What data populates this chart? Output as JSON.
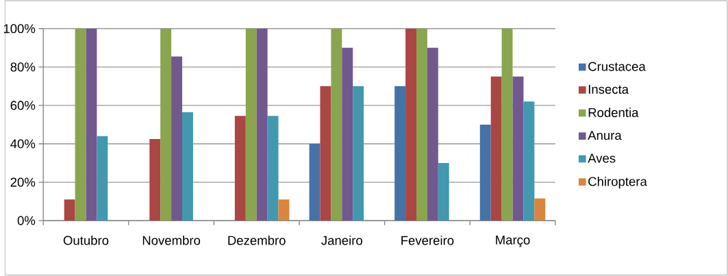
{
  "chart_data": {
    "type": "bar",
    "categories": [
      "Outubro",
      "Novembro",
      "Dezembro",
      "Janeiro",
      "Fevereiro",
      "Março"
    ],
    "series": [
      {
        "name": "Crustacea",
        "color": "#4572a7",
        "values": [
          0,
          0,
          0,
          40,
          70,
          50
        ]
      },
      {
        "name": "Insecta",
        "color": "#aa4643",
        "values": [
          11,
          42.5,
          54.5,
          70,
          100,
          75
        ]
      },
      {
        "name": "Rodentia",
        "color": "#89a54e",
        "values": [
          100,
          100,
          100,
          100,
          100,
          100
        ]
      },
      {
        "name": "Anura",
        "color": "#71588f",
        "values": [
          100,
          85.5,
          100,
          90,
          90,
          75
        ]
      },
      {
        "name": "Aves",
        "color": "#4198af",
        "values": [
          44,
          56.5,
          54.5,
          70,
          30,
          62
        ]
      },
      {
        "name": "Chiroptera",
        "color": "#db843d",
        "values": [
          0,
          0,
          11,
          0,
          0,
          11.5
        ]
      }
    ],
    "ylim": [
      0,
      100
    ],
    "yticks": [
      {
        "value": 0,
        "label": "0%"
      },
      {
        "value": 20,
        "label": "20%"
      },
      {
        "value": 40,
        "label": "40%"
      },
      {
        "value": 60,
        "label": "60%"
      },
      {
        "value": 80,
        "label": "80%"
      },
      {
        "value": 100,
        "label": "100%"
      }
    ],
    "grid": "y",
    "legend": "right"
  }
}
